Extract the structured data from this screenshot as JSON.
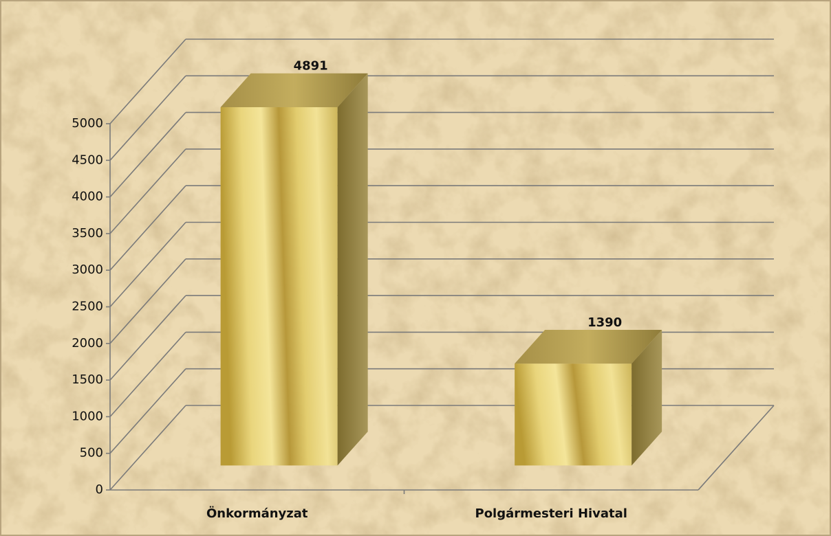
{
  "chart_data": {
    "type": "bar",
    "categories": [
      "Önkormányzat",
      "Polgármesteri Hivatal"
    ],
    "values": [
      4891,
      1390
    ],
    "color": "#d9c366",
    "ylim": [
      0,
      5000
    ],
    "yticks": [
      0,
      500,
      1000,
      1500,
      2000,
      2500,
      3000,
      3500,
      4000,
      4500,
      5000
    ],
    "grid": true
  }
}
